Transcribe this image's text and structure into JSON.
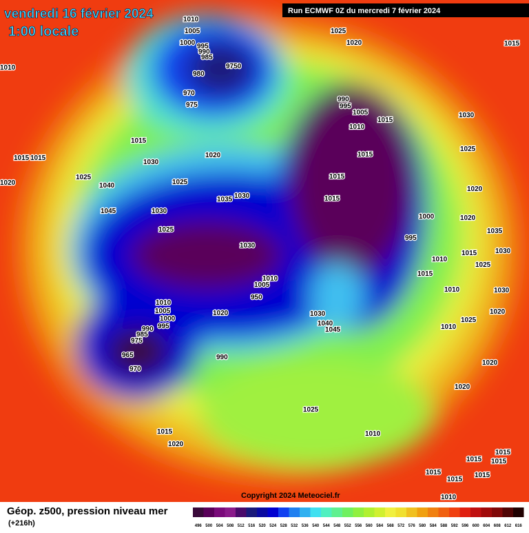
{
  "header": {
    "date": "vendredi 16 février 2024",
    "time": "1:00 locale",
    "run": "Run ECMWF 0Z du mercredi 7 février 2024"
  },
  "isobar_labels": [
    "1010",
    "1005",
    "1000",
    "995",
    "990",
    "985",
    "9750",
    "980",
    "970",
    "975",
    "1025",
    "1020",
    "1015",
    "1010",
    "990",
    "995",
    "1005",
    "1015",
    "1010",
    "1030",
    "1015",
    "1025",
    "1015",
    "1015",
    "1030",
    "1020",
    "1015",
    "1025",
    "1020",
    "1015",
    "1040",
    "1025",
    "1020",
    "1035",
    "1030",
    "1015",
    "1045",
    "1030",
    "1000",
    "1020",
    "1025",
    "1035",
    "995",
    "1030",
    "1015",
    "1030",
    "1010",
    "1025",
    "1015",
    "1010",
    "1030",
    "1010",
    "1020",
    "1010",
    "1005",
    "1000",
    "995",
    "1020",
    "1030",
    "1040",
    "1045",
    "1025",
    "1010",
    "990",
    "985",
    "975",
    "965",
    "970",
    "990",
    "1020",
    "1020",
    "1025",
    "1010",
    "1015",
    "1020",
    "1015",
    "1015",
    "1015",
    "1015",
    "1015",
    "1015",
    "1010",
    "1005",
    "950"
  ],
  "footer": {
    "copyright": "Copyright 2024 Meteociel.fr",
    "caption": "Géop. z500, pression niveau mer",
    "lead": "(+216h)"
  },
  "legend": {
    "values": [
      496,
      500,
      504,
      508,
      512,
      516,
      520,
      524,
      528,
      532,
      536,
      540,
      544,
      548,
      552,
      556,
      560,
      564,
      568,
      572,
      576,
      580,
      584,
      588,
      592,
      596,
      600,
      604,
      608,
      612,
      616
    ],
    "colors": [
      "#3a0a3a",
      "#5a005a",
      "#7a0a7a",
      "#8a1a8a",
      "#4a0a6a",
      "#1a1a7a",
      "#0a0aa0",
      "#0000d0",
      "#1040f0",
      "#2080f0",
      "#30b0f0",
      "#40e0f0",
      "#50f0c0",
      "#60f090",
      "#70f060",
      "#90f040",
      "#b0f030",
      "#d0f030",
      "#f0f040",
      "#f0e030",
      "#f0c020",
      "#f0a010",
      "#f08010",
      "#f06010",
      "#f04010",
      "#e02010",
      "#c01010",
      "#a00a0a",
      "#800808",
      "#500505",
      "#200202"
    ]
  }
}
